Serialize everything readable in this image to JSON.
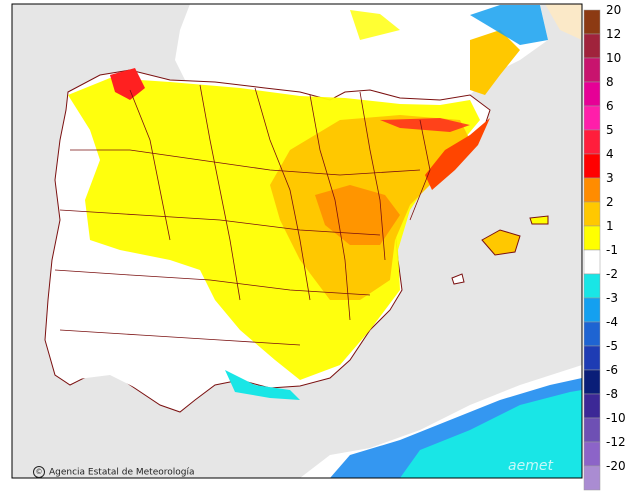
{
  "map": {
    "credit": "Agencia Estatal de Meteorología",
    "watermark": "aemet"
  },
  "legend": {
    "items": [
      {
        "label": "20",
        "color": "#8c3a13"
      },
      {
        "label": "12",
        "color": "#a0233c"
      },
      {
        "label": "10",
        "color": "#c8146e"
      },
      {
        "label": "8",
        "color": "#e60096"
      },
      {
        "label": "6",
        "color": "#ff1eaa"
      },
      {
        "label": "5",
        "color": "#ff1e3c"
      },
      {
        "label": "4",
        "color": "#ff0000"
      },
      {
        "label": "3",
        "color": "#ff8c00"
      },
      {
        "label": "2",
        "color": "#ffc800"
      },
      {
        "label": "1",
        "color": "#ffff00"
      },
      {
        "label": "-1",
        "color": "#ffffff"
      },
      {
        "label": "-2",
        "color": "#19e6e6"
      },
      {
        "label": "-3",
        "color": "#14a0f0"
      },
      {
        "label": "-4",
        "color": "#1e64d2"
      },
      {
        "label": "-5",
        "color": "#1e3cb4"
      },
      {
        "label": "-6",
        "color": "#0a1e78"
      },
      {
        "label": "-8",
        "color": "#3c2896"
      },
      {
        "label": "-10",
        "color": "#6e50b4"
      },
      {
        "label": "-12",
        "color": "#8c64c8"
      },
      {
        "label": "-20",
        "color": "#aa8cd2"
      }
    ]
  },
  "colors": {
    "sea": "#e6e6e6",
    "land": "#ffffff",
    "border": "#7a1010",
    "frame": "#000000"
  }
}
